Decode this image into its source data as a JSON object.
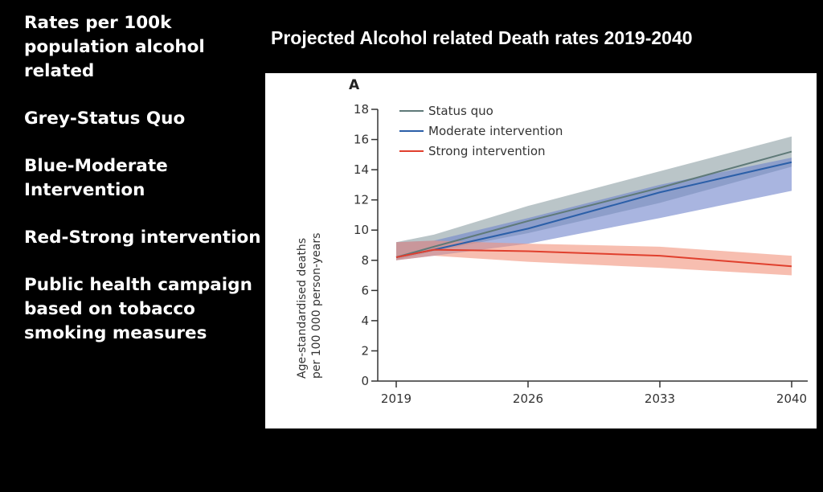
{
  "notes": [
    "Rates per 100k population  alcohol related",
    "Grey-Status Quo",
    "Blue-Moderate Intervention",
    "Red-Strong intervention",
    "Public health campaign  based on tobacco smoking measures"
  ],
  "chart_data": {
    "type": "line",
    "title": "Projected Alcohol related  Death rates 2019-2040",
    "panel_label": "A",
    "xlabel": "",
    "ylabel": "Age-standardised deaths per 100 000 person-years",
    "xlim": [
      2018.5,
      2040.5
    ],
    "ylim": [
      0,
      18
    ],
    "xticks": [
      2019,
      2026,
      2033,
      2040
    ],
    "yticks": [
      0,
      2,
      4,
      6,
      8,
      10,
      12,
      14,
      16,
      18
    ],
    "legend_position": "top-left",
    "x": [
      2019,
      2021,
      2026,
      2033,
      2040
    ],
    "series": [
      {
        "name": "Status quo",
        "color": "#5f7a78",
        "band_color": "#8c9ea4",
        "values": [
          8.2,
          8.9,
          10.6,
          12.8,
          15.2
        ],
        "lower": [
          8.0,
          8.6,
          9.8,
          11.8,
          14.2
        ],
        "upper": [
          9.2,
          9.7,
          11.6,
          13.9,
          16.2
        ]
      },
      {
        "name": "Moderate intervention",
        "color": "#2b5fa8",
        "band_color": "#6f84cc",
        "values": [
          8.2,
          8.7,
          10.1,
          12.5,
          14.5
        ],
        "lower": [
          8.0,
          8.3,
          9.1,
          10.8,
          12.6
        ],
        "upper": [
          9.2,
          9.3,
          10.8,
          13.0,
          14.8
        ]
      },
      {
        "name": "Strong intervention",
        "color": "#e0402e",
        "band_color": "#f1927c",
        "values": [
          8.2,
          8.7,
          8.6,
          8.3,
          7.6
        ],
        "lower": [
          8.0,
          8.3,
          7.9,
          7.5,
          7.0
        ],
        "upper": [
          9.2,
          9.3,
          9.1,
          8.9,
          8.3
        ]
      }
    ]
  }
}
